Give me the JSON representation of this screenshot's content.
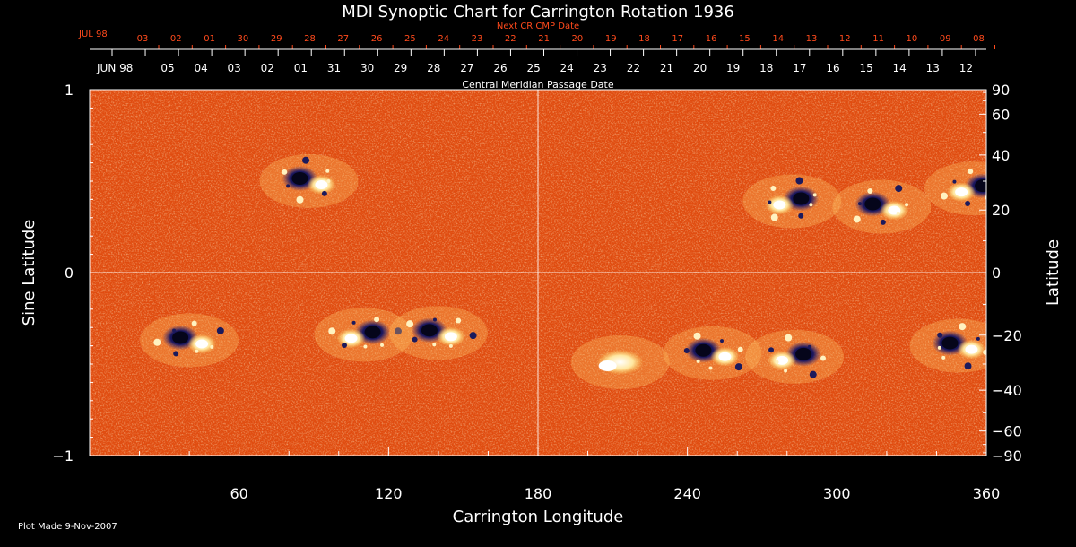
{
  "chart_data": {
    "type": "heatmap",
    "title": "MDI Synoptic Chart for Carrington Rotation 1936",
    "xlabel": "Carrington Longitude",
    "ylabel_left": "Sine Latitude",
    "ylabel_right": "Latitude",
    "xlim": [
      0,
      360
    ],
    "ylim": [
      -1,
      1
    ],
    "x_ticks": [
      60,
      120,
      180,
      240,
      300,
      360
    ],
    "y_left_ticks": [
      {
        "value": 1,
        "label": "1"
      },
      {
        "value": 0,
        "label": "0"
      },
      {
        "value": -1,
        "label": "−1"
      }
    ],
    "y_right_ticks": [
      90,
      60,
      40,
      20,
      0,
      -20,
      -40,
      -60,
      -90
    ],
    "y_right_tick_labels": [
      "90",
      "60",
      "40",
      "20",
      "0",
      "−20",
      "−40",
      "−60",
      "−90"
    ],
    "cmp_axis": {
      "label": "Central Meridian Passage Date",
      "first_label": "JUN 98",
      "dates": [
        "05",
        "04",
        "03",
        "02",
        "01",
        "31",
        "30",
        "29",
        "28",
        "27",
        "26",
        "25",
        "24",
        "23",
        "22",
        "21",
        "20",
        "19",
        "18",
        "17",
        "16",
        "15",
        "14",
        "13",
        "12"
      ]
    },
    "next_cmp_axis": {
      "label": "Next CR CMP Date",
      "first_label": "JUL 98",
      "dates": [
        "03",
        "02",
        "01",
        "30",
        "29",
        "28",
        "27",
        "26",
        "25",
        "24",
        "23",
        "22",
        "21",
        "20",
        "19",
        "18",
        "17",
        "16",
        "15",
        "14",
        "13",
        "12",
        "11",
        "10",
        "09",
        "08"
      ]
    },
    "active_regions": [
      {
        "lon": 88,
        "sinlat": 0.5,
        "polarity": "bipolar"
      },
      {
        "lon": 282,
        "sinlat": 0.39,
        "polarity": "bipolar"
      },
      {
        "lon": 318,
        "sinlat": 0.36,
        "polarity": "bipolar"
      },
      {
        "lon": 355,
        "sinlat": 0.46,
        "polarity": "bipolar"
      },
      {
        "lon": 40,
        "sinlat": -0.37,
        "polarity": "bipolar"
      },
      {
        "lon": 110,
        "sinlat": -0.34,
        "polarity": "bipolar"
      },
      {
        "lon": 140,
        "sinlat": -0.33,
        "polarity": "bipolar"
      },
      {
        "lon": 213,
        "sinlat": -0.49,
        "polarity": "positive"
      },
      {
        "lon": 250,
        "sinlat": -0.44,
        "polarity": "bipolar"
      },
      {
        "lon": 283,
        "sinlat": -0.46,
        "polarity": "bipolar"
      },
      {
        "lon": 349,
        "sinlat": -0.4,
        "polarity": "bipolar"
      }
    ],
    "colors": {
      "background": "#000000",
      "field_mid": "#e65010",
      "positive": "#ffffff",
      "negative": "#101050",
      "text": "#ffffff",
      "cmp_next_text": "#ff4a1c"
    },
    "grid": false
  },
  "footer": {
    "plot_made": "Plot Made  9-Nov-2007"
  }
}
